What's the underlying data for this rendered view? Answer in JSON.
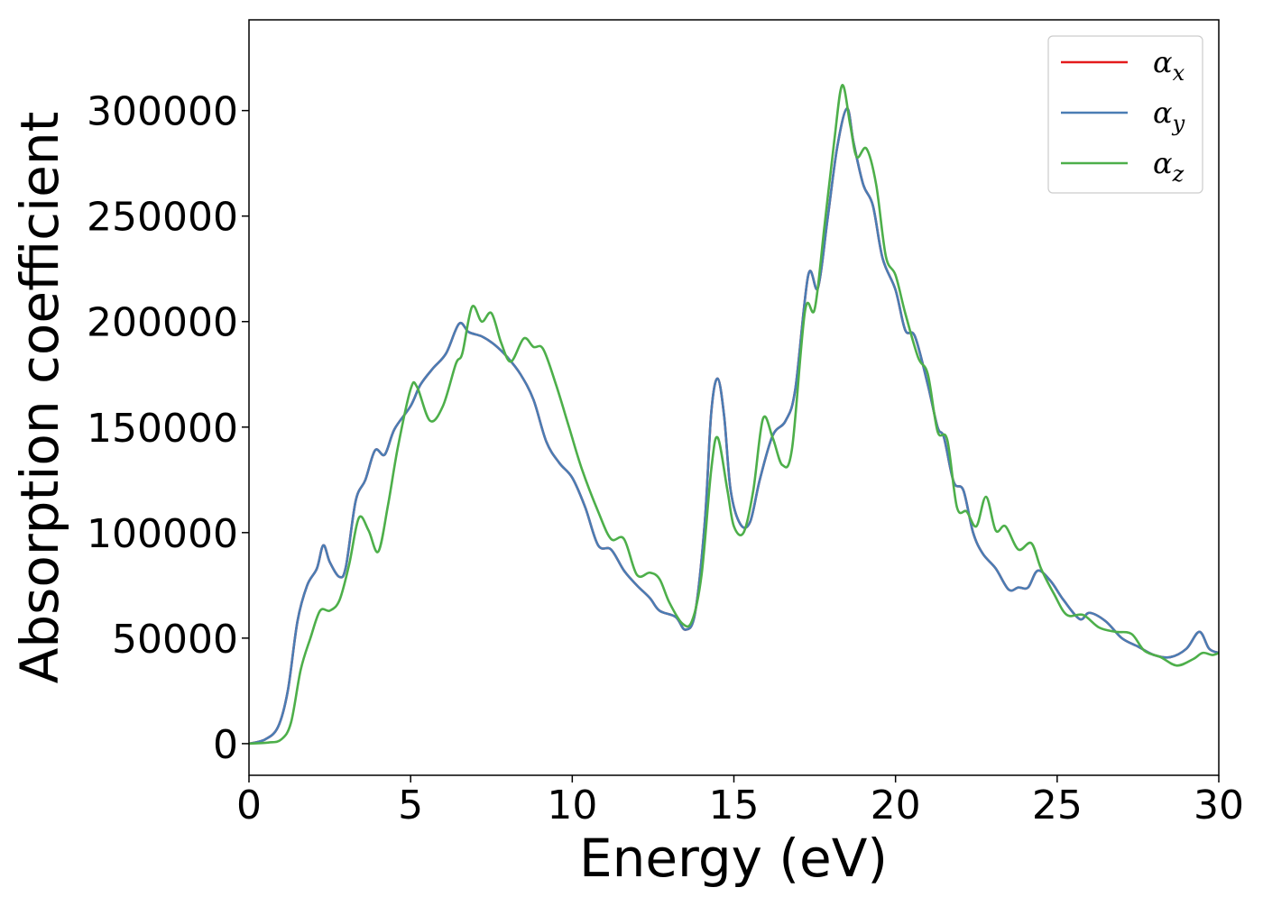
{
  "chart_data": {
    "type": "line",
    "title": "",
    "xlabel": "Energy (eV)",
    "ylabel": "Absorption coefficient",
    "xlim": [
      0,
      30
    ],
    "ylim": [
      -15000,
      343000
    ],
    "grid": false,
    "legend_placement": "top-right",
    "x_ticks": [
      0,
      5,
      10,
      15,
      20,
      25,
      30
    ],
    "y_ticks": [
      0,
      50000,
      100000,
      150000,
      200000,
      250000,
      300000
    ],
    "series": [
      {
        "name": "α_x",
        "legend_base": "α",
        "legend_sub": "x",
        "color": "#e41a1c",
        "points": [
          [
            0,
            0
          ],
          [
            0.5,
            2000
          ],
          [
            0.9,
            8000
          ],
          [
            1.2,
            25000
          ],
          [
            1.5,
            58000
          ],
          [
            1.8,
            75000
          ],
          [
            2.1,
            83000
          ],
          [
            2.3,
            94000
          ],
          [
            2.5,
            86000
          ],
          [
            2.8,
            79000
          ],
          [
            3.0,
            84000
          ],
          [
            3.3,
            115000
          ],
          [
            3.6,
            125000
          ],
          [
            3.9,
            139000
          ],
          [
            4.2,
            137000
          ],
          [
            4.5,
            149000
          ],
          [
            5.0,
            160000
          ],
          [
            5.3,
            170000
          ],
          [
            5.7,
            178000
          ],
          [
            6.1,
            185000
          ],
          [
            6.5,
            199000
          ],
          [
            6.8,
            195000
          ],
          [
            7.2,
            193000
          ],
          [
            7.6,
            189000
          ],
          [
            8.0,
            183000
          ],
          [
            8.4,
            175000
          ],
          [
            8.8,
            163000
          ],
          [
            9.2,
            143000
          ],
          [
            9.6,
            133000
          ],
          [
            10.0,
            126000
          ],
          [
            10.4,
            112000
          ],
          [
            10.8,
            94000
          ],
          [
            11.2,
            92000
          ],
          [
            11.6,
            82000
          ],
          [
            12.0,
            75000
          ],
          [
            12.4,
            69000
          ],
          [
            12.7,
            63000
          ],
          [
            13.2,
            60000
          ],
          [
            13.5,
            54000
          ],
          [
            13.8,
            62000
          ],
          [
            14.1,
            105000
          ],
          [
            14.3,
            157000
          ],
          [
            14.5,
            173000
          ],
          [
            14.7,
            155000
          ],
          [
            14.9,
            120000
          ],
          [
            15.2,
            104000
          ],
          [
            15.5,
            105000
          ],
          [
            15.8,
            125000
          ],
          [
            16.2,
            146000
          ],
          [
            16.6,
            153000
          ],
          [
            16.9,
            168000
          ],
          [
            17.3,
            222000
          ],
          [
            17.6,
            216000
          ],
          [
            17.9,
            249000
          ],
          [
            18.2,
            283000
          ],
          [
            18.5,
            301000
          ],
          [
            18.7,
            285000
          ],
          [
            19.0,
            265000
          ],
          [
            19.3,
            255000
          ],
          [
            19.6,
            230000
          ],
          [
            20.0,
            215000
          ],
          [
            20.3,
            196000
          ],
          [
            20.6,
            193000
          ],
          [
            21.0,
            170000
          ],
          [
            21.3,
            150000
          ],
          [
            21.5,
            145000
          ],
          [
            21.8,
            124000
          ],
          [
            22.1,
            120000
          ],
          [
            22.4,
            100000
          ],
          [
            22.7,
            90000
          ],
          [
            23.1,
            83000
          ],
          [
            23.5,
            73000
          ],
          [
            23.8,
            74000
          ],
          [
            24.1,
            74000
          ],
          [
            24.4,
            82000
          ],
          [
            24.8,
            77000
          ],
          [
            25.2,
            68000
          ],
          [
            25.7,
            59000
          ],
          [
            26.0,
            62000
          ],
          [
            26.5,
            58000
          ],
          [
            27.0,
            50000
          ],
          [
            27.5,
            46000
          ],
          [
            28.0,
            42000
          ],
          [
            28.5,
            41000
          ],
          [
            29.0,
            45000
          ],
          [
            29.4,
            53000
          ],
          [
            29.7,
            45000
          ],
          [
            30.0,
            43000
          ]
        ]
      },
      {
        "name": "α_y",
        "legend_base": "α",
        "legend_sub": "y",
        "color": "#4a7db4",
        "points": [
          [
            0,
            0
          ],
          [
            0.5,
            2000
          ],
          [
            0.9,
            8000
          ],
          [
            1.2,
            25000
          ],
          [
            1.5,
            58000
          ],
          [
            1.8,
            75000
          ],
          [
            2.1,
            83000
          ],
          [
            2.3,
            94000
          ],
          [
            2.5,
            86000
          ],
          [
            2.8,
            79000
          ],
          [
            3.0,
            84000
          ],
          [
            3.3,
            115000
          ],
          [
            3.6,
            125000
          ],
          [
            3.9,
            139000
          ],
          [
            4.2,
            137000
          ],
          [
            4.5,
            149000
          ],
          [
            5.0,
            160000
          ],
          [
            5.3,
            170000
          ],
          [
            5.7,
            178000
          ],
          [
            6.1,
            185000
          ],
          [
            6.5,
            199000
          ],
          [
            6.8,
            195000
          ],
          [
            7.2,
            193000
          ],
          [
            7.6,
            189000
          ],
          [
            8.0,
            183000
          ],
          [
            8.4,
            175000
          ],
          [
            8.8,
            163000
          ],
          [
            9.2,
            143000
          ],
          [
            9.6,
            133000
          ],
          [
            10.0,
            126000
          ],
          [
            10.4,
            112000
          ],
          [
            10.8,
            94000
          ],
          [
            11.2,
            92000
          ],
          [
            11.6,
            82000
          ],
          [
            12.0,
            75000
          ],
          [
            12.4,
            69000
          ],
          [
            12.7,
            63000
          ],
          [
            13.2,
            60000
          ],
          [
            13.5,
            54000
          ],
          [
            13.8,
            62000
          ],
          [
            14.1,
            105000
          ],
          [
            14.3,
            157000
          ],
          [
            14.5,
            173000
          ],
          [
            14.7,
            155000
          ],
          [
            14.9,
            120000
          ],
          [
            15.2,
            104000
          ],
          [
            15.5,
            105000
          ],
          [
            15.8,
            125000
          ],
          [
            16.2,
            146000
          ],
          [
            16.6,
            153000
          ],
          [
            16.9,
            168000
          ],
          [
            17.3,
            222000
          ],
          [
            17.6,
            216000
          ],
          [
            17.9,
            249000
          ],
          [
            18.2,
            283000
          ],
          [
            18.5,
            301000
          ],
          [
            18.7,
            285000
          ],
          [
            19.0,
            265000
          ],
          [
            19.3,
            255000
          ],
          [
            19.6,
            230000
          ],
          [
            20.0,
            215000
          ],
          [
            20.3,
            196000
          ],
          [
            20.6,
            193000
          ],
          [
            21.0,
            170000
          ],
          [
            21.3,
            150000
          ],
          [
            21.5,
            145000
          ],
          [
            21.8,
            124000
          ],
          [
            22.1,
            120000
          ],
          [
            22.4,
            100000
          ],
          [
            22.7,
            90000
          ],
          [
            23.1,
            83000
          ],
          [
            23.5,
            73000
          ],
          [
            23.8,
            74000
          ],
          [
            24.1,
            74000
          ],
          [
            24.4,
            82000
          ],
          [
            24.8,
            77000
          ],
          [
            25.2,
            68000
          ],
          [
            25.7,
            59000
          ],
          [
            26.0,
            62000
          ],
          [
            26.5,
            58000
          ],
          [
            27.0,
            50000
          ],
          [
            27.5,
            46000
          ],
          [
            28.0,
            42000
          ],
          [
            28.5,
            41000
          ],
          [
            29.0,
            45000
          ],
          [
            29.4,
            53000
          ],
          [
            29.7,
            45000
          ],
          [
            30.0,
            43000
          ]
        ]
      },
      {
        "name": "α_z",
        "legend_base": "α",
        "legend_sub": "z",
        "color": "#4daf4a",
        "points": [
          [
            0,
            0
          ],
          [
            0.6,
            500
          ],
          [
            1.0,
            2000
          ],
          [
            1.3,
            10000
          ],
          [
            1.6,
            35000
          ],
          [
            1.9,
            50000
          ],
          [
            2.2,
            63000
          ],
          [
            2.5,
            63000
          ],
          [
            2.8,
            68000
          ],
          [
            3.1,
            85000
          ],
          [
            3.4,
            107000
          ],
          [
            3.7,
            101000
          ],
          [
            4.0,
            91000
          ],
          [
            4.3,
            113000
          ],
          [
            4.6,
            140000
          ],
          [
            5.0,
            168000
          ],
          [
            5.2,
            169000
          ],
          [
            5.6,
            153000
          ],
          [
            6.0,
            160000
          ],
          [
            6.4,
            180000
          ],
          [
            6.6,
            185000
          ],
          [
            6.9,
            207000
          ],
          [
            7.2,
            200000
          ],
          [
            7.5,
            204000
          ],
          [
            7.8,
            190000
          ],
          [
            8.1,
            181000
          ],
          [
            8.5,
            192000
          ],
          [
            8.8,
            188000
          ],
          [
            9.1,
            187000
          ],
          [
            9.5,
            170000
          ],
          [
            9.9,
            150000
          ],
          [
            10.3,
            130000
          ],
          [
            10.8,
            110000
          ],
          [
            11.2,
            97000
          ],
          [
            11.6,
            97000
          ],
          [
            12.0,
            80000
          ],
          [
            12.4,
            81000
          ],
          [
            12.7,
            78000
          ],
          [
            13.0,
            67000
          ],
          [
            13.4,
            57000
          ],
          [
            13.7,
            58000
          ],
          [
            14.0,
            80000
          ],
          [
            14.3,
            130000
          ],
          [
            14.5,
            145000
          ],
          [
            14.8,
            120000
          ],
          [
            15.0,
            103000
          ],
          [
            15.3,
            100000
          ],
          [
            15.6,
            120000
          ],
          [
            15.9,
            154000
          ],
          [
            16.2,
            145000
          ],
          [
            16.5,
            132000
          ],
          [
            16.8,
            140000
          ],
          [
            17.2,
            205000
          ],
          [
            17.5,
            206000
          ],
          [
            17.8,
            245000
          ],
          [
            18.1,
            285000
          ],
          [
            18.35,
            312000
          ],
          [
            18.6,
            293000
          ],
          [
            18.8,
            278000
          ],
          [
            19.1,
            282000
          ],
          [
            19.4,
            265000
          ],
          [
            19.7,
            231000
          ],
          [
            20.0,
            222000
          ],
          [
            20.3,
            204000
          ],
          [
            20.7,
            183000
          ],
          [
            21.0,
            175000
          ],
          [
            21.3,
            148000
          ],
          [
            21.6,
            144000
          ],
          [
            21.9,
            112000
          ],
          [
            22.2,
            110000
          ],
          [
            22.5,
            103000
          ],
          [
            22.8,
            117000
          ],
          [
            23.1,
            101000
          ],
          [
            23.4,
            103000
          ],
          [
            23.8,
            92000
          ],
          [
            24.2,
            95000
          ],
          [
            24.5,
            83000
          ],
          [
            24.9,
            71000
          ],
          [
            25.3,
            61000
          ],
          [
            25.8,
            61000
          ],
          [
            26.3,
            55000
          ],
          [
            26.8,
            53000
          ],
          [
            27.3,
            52000
          ],
          [
            27.7,
            44000
          ],
          [
            28.2,
            41000
          ],
          [
            28.7,
            37000
          ],
          [
            29.2,
            40000
          ],
          [
            29.5,
            43000
          ],
          [
            29.8,
            42000
          ],
          [
            30.0,
            43000
          ]
        ]
      }
    ]
  }
}
